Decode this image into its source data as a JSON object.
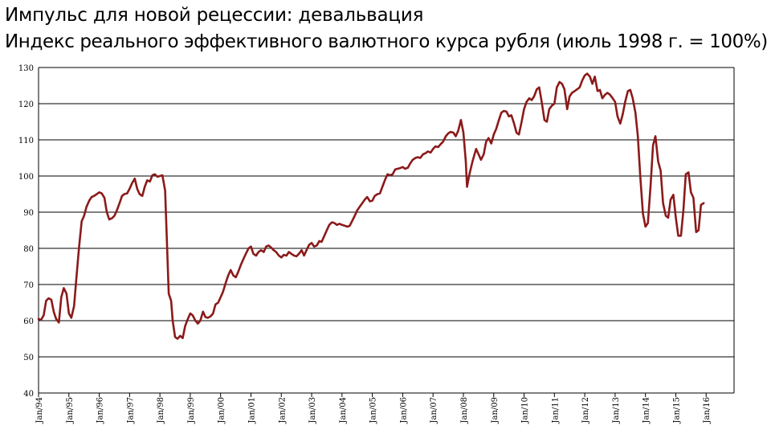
{
  "header": {
    "title": "Импульс для новой рецессии: девальвация",
    "subtitle": "Индекс реального эффективного валютного курса рубля (июль 1998 г. = 100%)"
  },
  "chart_data": {
    "type": "line",
    "title": "Импульс для новой рецессии: девальвация",
    "subtitle": "Индекс реального эффективного валютного курса рубля (июль 1998 г. = 100%)",
    "xlabel": "",
    "ylabel": "",
    "ylim": [
      40,
      130
    ],
    "yticks": [
      40,
      50,
      60,
      70,
      80,
      90,
      100,
      110,
      120,
      130
    ],
    "xlim": [
      1994.0,
      2016.92
    ],
    "xticks": [
      {
        "x": 1994,
        "label": "Jan/94"
      },
      {
        "x": 1995,
        "label": "Jan/95"
      },
      {
        "x": 1996,
        "label": "Jan/96"
      },
      {
        "x": 1997,
        "label": "Jan/97"
      },
      {
        "x": 1998,
        "label": "Jan/98"
      },
      {
        "x": 1999,
        "label": "Jan/99"
      },
      {
        "x": 2000,
        "label": "Jan/00"
      },
      {
        "x": 2001,
        "label": "Jan/01"
      },
      {
        "x": 2002,
        "label": "Jan/02"
      },
      {
        "x": 2003,
        "label": "Jan/03"
      },
      {
        "x": 2004,
        "label": "Jan/04"
      },
      {
        "x": 2005,
        "label": "Jan/05"
      },
      {
        "x": 2006,
        "label": "Jan/06"
      },
      {
        "x": 2007,
        "label": "Jan/07"
      },
      {
        "x": 2008,
        "label": "Jan/08"
      },
      {
        "x": 2009,
        "label": "Jan/09"
      },
      {
        "x": 2010,
        "label": "Jan/10"
      },
      {
        "x": 2011,
        "label": "Jan/11"
      },
      {
        "x": 2012,
        "label": "Jan/12"
      },
      {
        "x": 2013,
        "label": "Jan/13"
      },
      {
        "x": 2014,
        "label": "Jan/14"
      },
      {
        "x": 2015,
        "label": "Jan/15"
      },
      {
        "x": 2016,
        "label": "Jan/16"
      }
    ],
    "grid": {
      "horizontal": true,
      "vertical": false
    },
    "colors": {
      "line": "#8b1a1a",
      "grid": "#000000"
    },
    "series": [
      {
        "name": "",
        "points": [
          [
            1994.0,
            60.5
          ],
          [
            1994.08,
            60.2
          ],
          [
            1994.17,
            61.5
          ],
          [
            1994.25,
            65.5
          ],
          [
            1994.33,
            66.2
          ],
          [
            1994.42,
            65.8
          ],
          [
            1994.5,
            62.5
          ],
          [
            1994.58,
            60.5
          ],
          [
            1994.67,
            59.5
          ],
          [
            1994.75,
            66.5
          ],
          [
            1994.83,
            69.0
          ],
          [
            1994.92,
            67.5
          ],
          [
            1995.0,
            62.0
          ],
          [
            1995.08,
            60.8
          ],
          [
            1995.17,
            64.0
          ],
          [
            1995.25,
            72.0
          ],
          [
            1995.33,
            80.0
          ],
          [
            1995.42,
            87.5
          ],
          [
            1995.5,
            89.0
          ],
          [
            1995.58,
            91.5
          ],
          [
            1995.67,
            93.2
          ],
          [
            1995.75,
            94.2
          ],
          [
            1995.83,
            94.5
          ],
          [
            1995.92,
            95.0
          ],
          [
            1996.0,
            95.5
          ],
          [
            1996.08,
            95.2
          ],
          [
            1996.17,
            94.0
          ],
          [
            1996.25,
            90.0
          ],
          [
            1996.33,
            88.0
          ],
          [
            1996.42,
            88.3
          ],
          [
            1996.5,
            89.0
          ],
          [
            1996.58,
            90.5
          ],
          [
            1996.67,
            92.5
          ],
          [
            1996.75,
            94.5
          ],
          [
            1996.83,
            95.0
          ],
          [
            1996.92,
            95.2
          ],
          [
            1997.0,
            96.5
          ],
          [
            1997.08,
            98.0
          ],
          [
            1997.17,
            99.3
          ],
          [
            1997.25,
            96.5
          ],
          [
            1997.33,
            95.0
          ],
          [
            1997.42,
            94.5
          ],
          [
            1997.5,
            97.0
          ],
          [
            1997.58,
            98.8
          ],
          [
            1997.67,
            98.5
          ],
          [
            1997.75,
            100.2
          ],
          [
            1997.83,
            100.5
          ],
          [
            1997.92,
            99.8
          ],
          [
            1998.0,
            100.0
          ],
          [
            1998.08,
            100.2
          ],
          [
            1998.17,
            96.0
          ],
          [
            1998.25,
            77.0
          ],
          [
            1998.29,
            67.5
          ],
          [
            1998.37,
            65.5
          ],
          [
            1998.42,
            60.0
          ],
          [
            1998.5,
            55.5
          ],
          [
            1998.58,
            55.0
          ],
          [
            1998.67,
            55.8
          ],
          [
            1998.75,
            55.2
          ],
          [
            1998.83,
            58.5
          ],
          [
            1998.92,
            60.5
          ],
          [
            1999.0,
            62.0
          ],
          [
            1999.08,
            61.5
          ],
          [
            1999.17,
            60.0
          ],
          [
            1999.25,
            59.2
          ],
          [
            1999.33,
            60.0
          ],
          [
            1999.42,
            62.5
          ],
          [
            1999.5,
            61.0
          ],
          [
            1999.58,
            60.8
          ],
          [
            1999.67,
            61.2
          ],
          [
            1999.75,
            62.0
          ],
          [
            1999.83,
            64.5
          ],
          [
            1999.92,
            65.0
          ],
          [
            2000.0,
            66.5
          ],
          [
            2000.08,
            68.0
          ],
          [
            2000.17,
            70.5
          ],
          [
            2000.25,
            72.5
          ],
          [
            2000.33,
            74.0
          ],
          [
            2000.42,
            72.5
          ],
          [
            2000.5,
            72.0
          ],
          [
            2000.58,
            73.5
          ],
          [
            2000.67,
            75.5
          ],
          [
            2000.75,
            77.0
          ],
          [
            2000.83,
            78.5
          ],
          [
            2000.92,
            80.0
          ],
          [
            2001.0,
            80.5
          ],
          [
            2001.08,
            78.5
          ],
          [
            2001.17,
            78.0
          ],
          [
            2001.25,
            79.0
          ],
          [
            2001.33,
            79.5
          ],
          [
            2001.42,
            79.0
          ],
          [
            2001.5,
            80.5
          ],
          [
            2001.58,
            80.8
          ],
          [
            2001.67,
            80.2
          ],
          [
            2001.75,
            79.5
          ],
          [
            2001.83,
            79.0
          ],
          [
            2001.92,
            78.0
          ],
          [
            2002.0,
            77.5
          ],
          [
            2002.08,
            78.2
          ],
          [
            2002.17,
            78.0
          ],
          [
            2002.25,
            79.0
          ],
          [
            2002.33,
            78.5
          ],
          [
            2002.42,
            78.0
          ],
          [
            2002.5,
            77.8
          ],
          [
            2002.58,
            78.5
          ],
          [
            2002.67,
            79.5
          ],
          [
            2002.75,
            78.0
          ],
          [
            2002.83,
            79.5
          ],
          [
            2002.92,
            81.0
          ],
          [
            2003.0,
            81.5
          ],
          [
            2003.08,
            80.5
          ],
          [
            2003.17,
            80.8
          ],
          [
            2003.25,
            82.0
          ],
          [
            2003.33,
            81.8
          ],
          [
            2003.42,
            83.5
          ],
          [
            2003.5,
            85.0
          ],
          [
            2003.58,
            86.5
          ],
          [
            2003.67,
            87.2
          ],
          [
            2003.75,
            87.0
          ],
          [
            2003.83,
            86.5
          ],
          [
            2003.92,
            86.8
          ],
          [
            2004.0,
            86.5
          ],
          [
            2004.08,
            86.3
          ],
          [
            2004.17,
            86.0
          ],
          [
            2004.25,
            86.2
          ],
          [
            2004.33,
            87.5
          ],
          [
            2004.42,
            89.0
          ],
          [
            2004.5,
            90.5
          ],
          [
            2004.58,
            91.5
          ],
          [
            2004.67,
            92.5
          ],
          [
            2004.75,
            93.5
          ],
          [
            2004.83,
            94.2
          ],
          [
            2004.92,
            93.0
          ],
          [
            2005.0,
            93.2
          ],
          [
            2005.08,
            94.5
          ],
          [
            2005.17,
            95.0
          ],
          [
            2005.25,
            95.2
          ],
          [
            2005.33,
            97.0
          ],
          [
            2005.42,
            99.0
          ],
          [
            2005.5,
            100.5
          ],
          [
            2005.58,
            100.2
          ],
          [
            2005.67,
            100.5
          ],
          [
            2005.75,
            101.8
          ],
          [
            2005.83,
            102.0
          ],
          [
            2005.92,
            102.2
          ],
          [
            2006.0,
            102.5
          ],
          [
            2006.08,
            102.0
          ],
          [
            2006.17,
            102.3
          ],
          [
            2006.25,
            103.5
          ],
          [
            2006.33,
            104.5
          ],
          [
            2006.42,
            105.0
          ],
          [
            2006.5,
            105.2
          ],
          [
            2006.58,
            105.0
          ],
          [
            2006.67,
            106.0
          ],
          [
            2006.75,
            106.3
          ],
          [
            2006.83,
            106.8
          ],
          [
            2006.92,
            106.5
          ],
          [
            2007.0,
            107.5
          ],
          [
            2007.08,
            108.2
          ],
          [
            2007.17,
            108.0
          ],
          [
            2007.25,
            108.8
          ],
          [
            2007.33,
            109.5
          ],
          [
            2007.42,
            111.0
          ],
          [
            2007.5,
            111.8
          ],
          [
            2007.58,
            112.2
          ],
          [
            2007.67,
            112.0
          ],
          [
            2007.75,
            111.0
          ],
          [
            2007.83,
            112.5
          ],
          [
            2007.92,
            115.5
          ],
          [
            2008.0,
            112.0
          ],
          [
            2008.08,
            104.0
          ],
          [
            2008.12,
            97.0
          ],
          [
            2008.2,
            100.5
          ],
          [
            2008.3,
            104.0
          ],
          [
            2008.42,
            107.5
          ],
          [
            2008.5,
            106.0
          ],
          [
            2008.58,
            104.5
          ],
          [
            2008.67,
            106.0
          ],
          [
            2008.75,
            109.5
          ],
          [
            2008.83,
            110.5
          ],
          [
            2008.92,
            109.0
          ],
          [
            2009.0,
            111.5
          ],
          [
            2009.08,
            113.0
          ],
          [
            2009.17,
            115.5
          ],
          [
            2009.25,
            117.5
          ],
          [
            2009.33,
            118.0
          ],
          [
            2009.42,
            117.8
          ],
          [
            2009.5,
            116.5
          ],
          [
            2009.58,
            116.8
          ],
          [
            2009.67,
            114.5
          ],
          [
            2009.75,
            112.0
          ],
          [
            2009.83,
            111.5
          ],
          [
            2009.92,
            115.0
          ],
          [
            2010.0,
            118.5
          ],
          [
            2010.08,
            120.5
          ],
          [
            2010.17,
            121.5
          ],
          [
            2010.25,
            121.0
          ],
          [
            2010.33,
            122.0
          ],
          [
            2010.42,
            124.0
          ],
          [
            2010.5,
            124.5
          ],
          [
            2010.58,
            120.5
          ],
          [
            2010.67,
            115.5
          ],
          [
            2010.75,
            115.0
          ],
          [
            2010.83,
            118.5
          ],
          [
            2010.92,
            119.5
          ],
          [
            2011.0,
            120.0
          ],
          [
            2011.08,
            124.5
          ],
          [
            2011.17,
            126.0
          ],
          [
            2011.25,
            125.5
          ],
          [
            2011.33,
            124.0
          ],
          [
            2011.42,
            118.5
          ],
          [
            2011.5,
            122.0
          ],
          [
            2011.58,
            123.0
          ],
          [
            2011.67,
            123.5
          ],
          [
            2011.75,
            124.0
          ],
          [
            2011.83,
            124.5
          ],
          [
            2011.92,
            126.5
          ],
          [
            2012.0,
            127.8
          ],
          [
            2012.08,
            128.3
          ],
          [
            2012.17,
            127.5
          ],
          [
            2012.25,
            125.5
          ],
          [
            2012.33,
            127.5
          ],
          [
            2012.42,
            123.5
          ],
          [
            2012.5,
            123.8
          ],
          [
            2012.58,
            121.5
          ],
          [
            2012.67,
            122.5
          ],
          [
            2012.75,
            123.0
          ],
          [
            2012.83,
            122.5
          ],
          [
            2012.92,
            121.5
          ],
          [
            2013.0,
            120.5
          ],
          [
            2013.08,
            116.5
          ],
          [
            2013.17,
            114.5
          ],
          [
            2013.25,
            117.0
          ],
          [
            2013.33,
            120.5
          ],
          [
            2013.42,
            123.5
          ],
          [
            2013.5,
            123.8
          ],
          [
            2013.58,
            121.5
          ],
          [
            2013.67,
            117.5
          ],
          [
            2013.75,
            111.0
          ],
          [
            2013.83,
            100.0
          ],
          [
            2013.92,
            89.5
          ],
          [
            2014.0,
            86.0
          ],
          [
            2014.08,
            87.0
          ],
          [
            2014.17,
            97.5
          ],
          [
            2014.25,
            108.5
          ],
          [
            2014.33,
            111.0
          ],
          [
            2014.42,
            104.0
          ],
          [
            2014.5,
            101.5
          ],
          [
            2014.58,
            92.5
          ],
          [
            2014.67,
            89.0
          ],
          [
            2014.75,
            88.5
          ],
          [
            2014.83,
            93.5
          ],
          [
            2014.92,
            94.8
          ],
          [
            2015.0,
            88.5
          ],
          [
            2015.08,
            83.5
          ],
          [
            2015.17,
            83.5
          ],
          [
            2015.25,
            90.5
          ],
          [
            2015.33,
            100.5
          ],
          [
            2015.42,
            101.0
          ],
          [
            2015.5,
            95.5
          ],
          [
            2015.58,
            94.0
          ],
          [
            2015.67,
            84.5
          ],
          [
            2015.75,
            85.0
          ],
          [
            2015.83,
            92.0
          ],
          [
            2015.92,
            92.5
          ]
        ]
      }
    ]
  }
}
